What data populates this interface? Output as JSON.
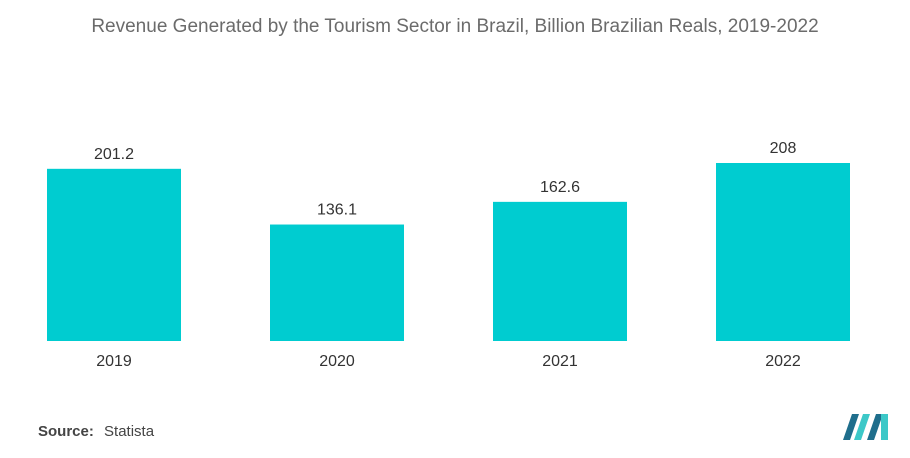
{
  "source": {
    "label": "Source:",
    "value": "Statista"
  },
  "colors": {
    "bar": "#00ccd0",
    "logo_dark": "#1f6e8c",
    "logo_light": "#3cc8c8"
  },
  "logo_icon": "mordor-intelligence-logo",
  "chart_data": {
    "type": "bar",
    "title": "Revenue Generated by the Tourism Sector in Brazil, Billion Brazilian Reals, 2019-2022",
    "categories": [
      "2019",
      "2020",
      "2021",
      "2022"
    ],
    "values": [
      201.2,
      136.1,
      162.6,
      208
    ],
    "value_labels": [
      "201.2",
      "136.1",
      "162.6",
      "208"
    ],
    "xlabel": "",
    "ylabel": "",
    "ylim": [
      0,
      208
    ],
    "grid": false,
    "legend": "none"
  }
}
